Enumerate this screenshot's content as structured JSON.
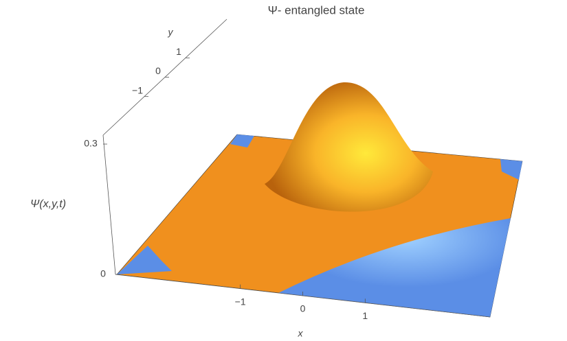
{
  "chart_data": {
    "type": "surface3d",
    "title": "Ψ- entangled state",
    "x_label": "x",
    "y_label": "y",
    "z_label": "Ψ(x,y,t)",
    "xlim": [
      -3,
      3
    ],
    "xticks": [
      {
        "value": -1,
        "label": "−1"
      },
      0,
      1
    ],
    "ylim": [
      -3,
      3
    ],
    "yticks": [
      {
        "value": -1,
        "label": "−1"
      },
      0,
      1
    ],
    "zlim": [
      0,
      0.3
    ],
    "zticks": [
      0,
      0.3
    ],
    "surface_color": "#f0901e",
    "floor_color": "#5b8ee6"
  }
}
